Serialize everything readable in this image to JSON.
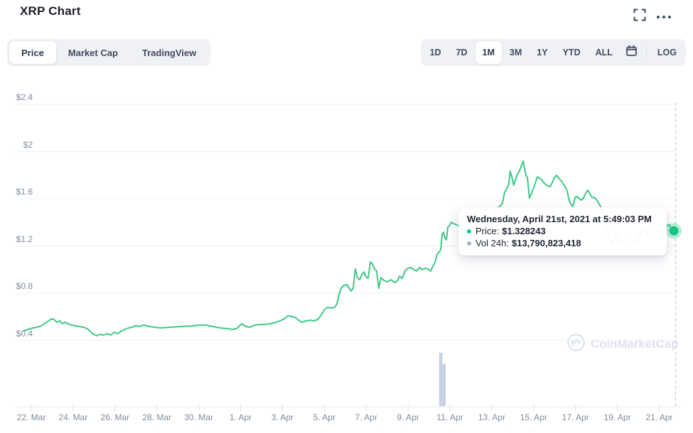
{
  "header": {
    "title": "XRP Chart"
  },
  "icons": {
    "fullscreen": "expand-corners",
    "more_options": "ellipsis-dots",
    "calendar": "calendar-outline",
    "watermark_logo": "coinmarketcap-m-circle"
  },
  "view_tabs": {
    "items": [
      {
        "label": "Price",
        "active": true
      },
      {
        "label": "Market Cap",
        "active": false
      },
      {
        "label": "TradingView",
        "active": false
      }
    ]
  },
  "range_tabs": {
    "items": [
      "1D",
      "7D",
      "1M",
      "3M",
      "1Y",
      "YTD",
      "ALL"
    ],
    "active": "1M",
    "log_label": "LOG"
  },
  "tooltip": {
    "title": "Wednesday, April 21st, 2021 at 5:49:03 PM",
    "rows": [
      {
        "label": "Price:",
        "value": "$1.328243",
        "bullet_color": "#16c784"
      },
      {
        "label": "Vol 24h:",
        "value": "$13,790,823,418",
        "bullet_color": "#a9b2c6"
      }
    ]
  },
  "watermark": {
    "text": "CoinMarketCap"
  },
  "colors": {
    "line_green": "#3ec886",
    "dot_green": "#16c784",
    "dot_halo": "rgba(22,199,132,0.30)",
    "volume_bar": "#c8cee1",
    "gridline": "#eff1f5",
    "axis_line": "#e7eaf0",
    "tick": "#d9dee8",
    "dashed_line": "#c6ccd9",
    "axis_label": "#808a9d"
  },
  "chart_data": {
    "type": "line",
    "title": "XRP price, 1M range, USD",
    "x_unit": "days since 22 Mar 2021",
    "y_unit": "USD",
    "ylim": [
      0.4,
      2.4
    ],
    "grid": true,
    "x_tick_labels": [
      "22. Mar",
      "24. Mar",
      "26. Mar",
      "28. Mar",
      "30. Mar",
      "1. Apr",
      "3. Apr",
      "5. Apr",
      "7. Apr",
      "9. Apr",
      "11. Apr",
      "13. Apr",
      "15. Apr",
      "17. Apr",
      "19. Apr",
      "21. Apr"
    ],
    "y_ticks": [
      {
        "label": "$0.4",
        "value": 0.4
      },
      {
        "label": "$0.8",
        "value": 0.8
      },
      {
        "label": "$1.2",
        "value": 1.2
      },
      {
        "label": "$1.6",
        "value": 1.6
      },
      {
        "label": "$2",
        "value": 2.0
      },
      {
        "label": "$2.4",
        "value": 2.4
      }
    ],
    "series": [
      {
        "name": "Price (USD)",
        "points": [
          [
            -0.37,
            0.481
          ],
          [
            -0.14,
            0.493
          ],
          [
            0.07,
            0.505
          ],
          [
            0.27,
            0.511
          ],
          [
            0.48,
            0.524
          ],
          [
            0.68,
            0.548
          ],
          [
            0.88,
            0.572
          ],
          [
            1.02,
            0.584
          ],
          [
            1.12,
            0.572
          ],
          [
            1.22,
            0.554
          ],
          [
            1.36,
            0.566
          ],
          [
            1.49,
            0.542
          ],
          [
            1.63,
            0.554
          ],
          [
            1.73,
            0.542
          ],
          [
            1.9,
            0.53
          ],
          [
            2.11,
            0.524
          ],
          [
            2.31,
            0.517
          ],
          [
            2.51,
            0.511
          ],
          [
            2.72,
            0.493
          ],
          [
            2.92,
            0.457
          ],
          [
            3.12,
            0.439
          ],
          [
            3.29,
            0.451
          ],
          [
            3.46,
            0.445
          ],
          [
            3.63,
            0.457
          ],
          [
            3.8,
            0.445
          ],
          [
            3.97,
            0.469
          ],
          [
            4.14,
            0.457
          ],
          [
            4.31,
            0.481
          ],
          [
            4.48,
            0.493
          ],
          [
            4.65,
            0.505
          ],
          [
            4.82,
            0.511
          ],
          [
            4.99,
            0.524
          ],
          [
            5.16,
            0.517
          ],
          [
            5.36,
            0.53
          ],
          [
            5.64,
            0.517
          ],
          [
            6.15,
            0.505
          ],
          [
            6.66,
            0.511
          ],
          [
            7.16,
            0.517
          ],
          [
            7.67,
            0.523
          ],
          [
            8.01,
            0.529
          ],
          [
            8.35,
            0.529
          ],
          [
            8.69,
            0.517
          ],
          [
            9.03,
            0.505
          ],
          [
            9.37,
            0.499
          ],
          [
            9.61,
            0.493
          ],
          [
            9.81,
            0.499
          ],
          [
            10.05,
            0.541
          ],
          [
            10.25,
            0.517
          ],
          [
            10.46,
            0.511
          ],
          [
            10.66,
            0.529
          ],
          [
            10.9,
            0.535
          ],
          [
            11.14,
            0.535
          ],
          [
            11.41,
            0.541
          ],
          [
            11.68,
            0.553
          ],
          [
            11.88,
            0.565
          ],
          [
            12.09,
            0.583
          ],
          [
            12.26,
            0.608
          ],
          [
            12.43,
            0.602
          ],
          [
            12.6,
            0.596
          ],
          [
            12.77,
            0.571
          ],
          [
            12.94,
            0.553
          ],
          [
            13.11,
            0.565
          ],
          [
            13.31,
            0.571
          ],
          [
            13.51,
            0.565
          ],
          [
            13.68,
            0.577
          ],
          [
            13.85,
            0.614
          ],
          [
            13.99,
            0.656
          ],
          [
            14.16,
            0.68
          ],
          [
            14.33,
            0.674
          ],
          [
            14.5,
            0.68
          ],
          [
            14.6,
            0.71
          ],
          [
            14.7,
            0.788
          ],
          [
            14.8,
            0.842
          ],
          [
            14.94,
            0.866
          ],
          [
            15.08,
            0.872
          ],
          [
            15.18,
            0.842
          ],
          [
            15.28,
            0.818
          ],
          [
            15.38,
            0.842
          ],
          [
            15.48,
            1.005
          ],
          [
            15.58,
            0.932
          ],
          [
            15.69,
            0.914
          ],
          [
            15.79,
            0.956
          ],
          [
            15.89,
            0.98
          ],
          [
            15.99,
            0.938
          ],
          [
            16.09,
            0.926
          ],
          [
            16.2,
            1.065
          ],
          [
            16.3,
            1.047
          ],
          [
            16.4,
            1.005
          ],
          [
            16.5,
            0.987
          ],
          [
            16.6,
            0.842
          ],
          [
            16.71,
            0.932
          ],
          [
            16.84,
            0.908
          ],
          [
            17.01,
            0.896
          ],
          [
            17.18,
            0.914
          ],
          [
            17.35,
            0.89
          ],
          [
            17.49,
            0.902
          ],
          [
            17.59,
            0.944
          ],
          [
            17.72,
            0.926
          ],
          [
            17.86,
            0.993
          ],
          [
            18,
            1.011
          ],
          [
            18.13,
            1.017
          ],
          [
            18.27,
            0.999
          ],
          [
            18.4,
            0.987
          ],
          [
            18.54,
            1.017
          ],
          [
            18.68,
            0.999
          ],
          [
            18.81,
            1.011
          ],
          [
            18.95,
            1.005
          ],
          [
            19.08,
            0.987
          ],
          [
            19.19,
            1.029
          ],
          [
            19.29,
            1.059
          ],
          [
            19.39,
            1.131
          ],
          [
            19.49,
            1.149
          ],
          [
            19.56,
            1.167
          ],
          [
            19.63,
            1.299
          ],
          [
            19.69,
            1.317
          ],
          [
            19.76,
            1.269
          ],
          [
            19.83,
            1.251
          ],
          [
            19.9,
            1.359
          ],
          [
            19.97,
            1.371
          ],
          [
            20.07,
            1.401
          ],
          [
            20.17,
            1.389
          ],
          [
            20.27,
            1.383
          ],
          [
            20.41,
            1.371
          ],
          [
            20.58,
            1.347
          ],
          [
            20.75,
            1.317
          ],
          [
            20.92,
            1.287
          ],
          [
            21.09,
            1.251
          ],
          [
            21.26,
            1.197
          ],
          [
            21.43,
            1.167
          ],
          [
            21.6,
            1.227
          ],
          [
            21.77,
            1.269
          ],
          [
            21.94,
            1.347
          ],
          [
            22.11,
            1.444
          ],
          [
            22.27,
            1.522
          ],
          [
            22.41,
            1.54
          ],
          [
            22.51,
            1.564
          ],
          [
            22.61,
            1.654
          ],
          [
            22.71,
            1.684
          ],
          [
            22.82,
            1.726
          ],
          [
            22.88,
            1.834
          ],
          [
            22.95,
            1.792
          ],
          [
            23.05,
            1.714
          ],
          [
            23.12,
            1.756
          ],
          [
            23.22,
            1.804
          ],
          [
            23.32,
            1.834
          ],
          [
            23.43,
            1.889
          ],
          [
            23.5,
            1.919
          ],
          [
            23.56,
            1.865
          ],
          [
            23.63,
            1.798
          ],
          [
            23.7,
            1.78
          ],
          [
            23.8,
            1.606
          ],
          [
            23.9,
            1.648
          ],
          [
            24.01,
            1.696
          ],
          [
            24.11,
            1.75
          ],
          [
            24.18,
            1.786
          ],
          [
            24.28,
            1.774
          ],
          [
            24.38,
            1.762
          ],
          [
            24.48,
            1.738
          ],
          [
            24.58,
            1.72
          ],
          [
            24.69,
            1.708
          ],
          [
            24.79,
            1.702
          ],
          [
            24.89,
            1.738
          ],
          [
            24.99,
            1.78
          ],
          [
            25.09,
            1.798
          ],
          [
            25.2,
            1.774
          ],
          [
            25.3,
            1.756
          ],
          [
            25.4,
            1.732
          ],
          [
            25.5,
            1.702
          ],
          [
            25.6,
            1.666
          ],
          [
            25.7,
            1.582
          ],
          [
            25.81,
            1.546
          ],
          [
            25.87,
            1.534
          ],
          [
            25.98,
            1.612
          ],
          [
            26.08,
            1.618
          ],
          [
            26.18,
            1.6
          ],
          [
            26.28,
            1.588
          ],
          [
            26.38,
            1.606
          ],
          [
            26.49,
            1.648
          ],
          [
            26.59,
            1.672
          ],
          [
            26.69,
            1.642
          ],
          [
            26.79,
            1.612
          ],
          [
            26.89,
            1.612
          ],
          [
            27,
            1.594
          ],
          [
            27.1,
            1.564
          ],
          [
            27.2,
            1.534
          ],
          [
            27.3,
            1.474
          ],
          [
            27.4,
            1.413
          ],
          [
            27.5,
            1.353
          ],
          [
            27.61,
            1.287
          ],
          [
            27.71,
            1.233
          ],
          [
            27.77,
            1.215
          ],
          [
            27.88,
            1.251
          ],
          [
            27.98,
            1.293
          ],
          [
            28.08,
            1.263
          ],
          [
            28.18,
            1.221
          ],
          [
            28.28,
            1.233
          ],
          [
            28.39,
            1.263
          ],
          [
            28.49,
            1.293
          ],
          [
            28.59,
            1.281
          ],
          [
            28.69,
            1.251
          ],
          [
            28.79,
            1.221
          ],
          [
            28.9,
            1.239
          ],
          [
            29,
            1.269
          ],
          [
            29.1,
            1.305
          ],
          [
            29.2,
            1.335
          ],
          [
            29.3,
            1.341
          ],
          [
            29.41,
            1.311
          ],
          [
            29.51,
            1.287
          ],
          [
            29.61,
            1.299
          ],
          [
            29.71,
            1.323
          ],
          [
            29.81,
            1.353
          ],
          [
            29.91,
            1.341
          ],
          [
            30.02,
            1.323
          ],
          [
            30.12,
            1.311
          ],
          [
            30.22,
            1.335
          ],
          [
            30.36,
            1.371
          ],
          [
            30.46,
            1.383
          ],
          [
            30.56,
            1.353
          ],
          [
            30.63,
            1.323
          ],
          [
            30.7,
            1.328243
          ]
        ]
      }
    ],
    "volume_bars": [
      {
        "day": 19.56,
        "rel_height": 1.0
      },
      {
        "day": 19.72,
        "rel_height": 0.79
      }
    ],
    "current_point": {
      "day": 30.7,
      "price": 1.328243,
      "vol_24h": "$13,790,823,418"
    }
  }
}
